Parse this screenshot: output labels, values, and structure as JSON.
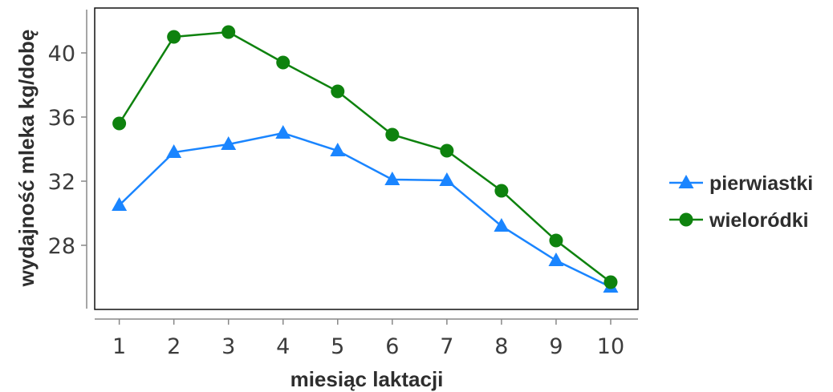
{
  "chart_data": {
    "type": "line",
    "xlabel": "miesiąc laktacji",
    "ylabel": "wydajność mleka kg/dobę",
    "x": [
      1,
      2,
      3,
      4,
      5,
      6,
      7,
      8,
      9,
      10
    ],
    "x_ticks": [
      "1",
      "2",
      "3",
      "4",
      "5",
      "6",
      "7",
      "8",
      "9",
      "10"
    ],
    "y_ticks": [
      28,
      32,
      36,
      40
    ],
    "xlim": [
      0.55,
      10.5
    ],
    "ylim": [
      24,
      42.8
    ],
    "grid": false,
    "legend_position": "right",
    "series": [
      {
        "name": "pierwiastki",
        "color": "#1a85ff",
        "marker": "triangle",
        "values": [
          30.5,
          33.8,
          34.3,
          35.0,
          33.9,
          32.1,
          32.05,
          29.2,
          27.05,
          25.4
        ]
      },
      {
        "name": "wieloródki",
        "color": "#0e820e",
        "marker": "circle",
        "values": [
          35.6,
          41.0,
          41.3,
          39.4,
          37.6,
          34.9,
          33.9,
          31.4,
          28.3,
          25.7
        ]
      }
    ]
  }
}
